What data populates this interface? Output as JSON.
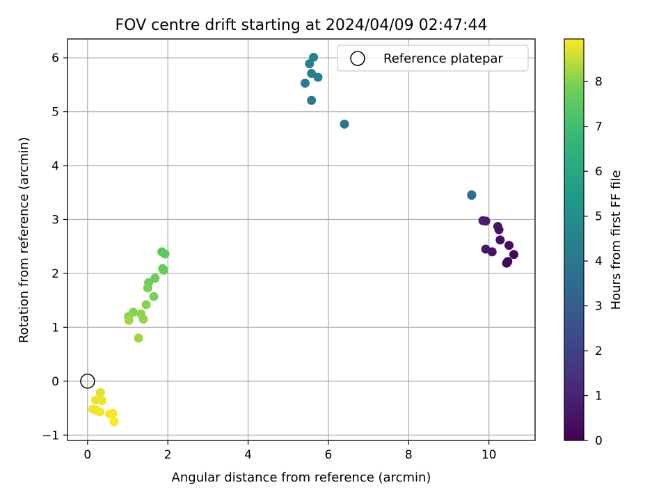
{
  "chart_data": {
    "type": "scatter",
    "title": "FOV centre drift starting at 2024/04/09 02:47:44",
    "xlabel": "Angular distance from reference (arcmin)",
    "ylabel": "Rotation from reference (arcmin)",
    "xlim": [
      -0.5,
      11.15
    ],
    "ylim": [
      -1.1,
      6.35
    ],
    "xticks": [
      0,
      2,
      4,
      6,
      8,
      10
    ],
    "yticks": [
      -1,
      0,
      1,
      2,
      3,
      4,
      5,
      6
    ],
    "grid": true,
    "legend": {
      "position": "top-right",
      "entries": [
        "Reference platepar"
      ]
    },
    "reference_point": {
      "x": 0,
      "y": 0
    },
    "colorbar": {
      "label": "Hours from first FF file",
      "colormap": "viridis",
      "range": [
        0,
        8.95
      ],
      "ticks": [
        0,
        1,
        2,
        3,
        4,
        5,
        6,
        7,
        8
      ]
    },
    "points": [
      {
        "x": 9.85,
        "y": 2.98,
        "hours": 0.9
      },
      {
        "x": 9.92,
        "y": 2.97,
        "hours": 0.8
      },
      {
        "x": 10.22,
        "y": 2.87,
        "hours": 0.6
      },
      {
        "x": 10.25,
        "y": 2.81,
        "hours": 0.5
      },
      {
        "x": 10.28,
        "y": 2.62,
        "hours": 0.4
      },
      {
        "x": 10.5,
        "y": 2.52,
        "hours": 0.3
      },
      {
        "x": 10.62,
        "y": 2.35,
        "hours": 0.2
      },
      {
        "x": 10.08,
        "y": 2.4,
        "hours": 0.5
      },
      {
        "x": 9.92,
        "y": 2.45,
        "hours": 0.6
      },
      {
        "x": 10.44,
        "y": 2.19,
        "hours": 0.1
      },
      {
        "x": 10.47,
        "y": 2.22,
        "hours": 0.1
      },
      {
        "x": 9.57,
        "y": 3.45,
        "hours": 3.3
      },
      {
        "x": 9.57,
        "y": 3.46,
        "hours": 3.6
      },
      {
        "x": 6.4,
        "y": 4.77,
        "hours": 3.9
      },
      {
        "x": 5.58,
        "y": 5.21,
        "hours": 4.1
      },
      {
        "x": 5.42,
        "y": 5.53,
        "hours": 4.2
      },
      {
        "x": 5.58,
        "y": 5.71,
        "hours": 4.3
      },
      {
        "x": 5.74,
        "y": 5.64,
        "hours": 4.3
      },
      {
        "x": 5.53,
        "y": 5.89,
        "hours": 4.4
      },
      {
        "x": 5.63,
        "y": 6.01,
        "hours": 4.5
      },
      {
        "x": 1.85,
        "y": 2.4,
        "hours": 7.5
      },
      {
        "x": 1.93,
        "y": 2.36,
        "hours": 7.6
      },
      {
        "x": 1.87,
        "y": 2.09,
        "hours": 7.7
      },
      {
        "x": 1.9,
        "y": 2.06,
        "hours": 7.7
      },
      {
        "x": 1.68,
        "y": 1.91,
        "hours": 7.8
      },
      {
        "x": 1.52,
        "y": 1.83,
        "hours": 7.8
      },
      {
        "x": 1.5,
        "y": 1.73,
        "hours": 7.9
      },
      {
        "x": 1.65,
        "y": 1.57,
        "hours": 7.9
      },
      {
        "x": 1.46,
        "y": 1.42,
        "hours": 8.0
      },
      {
        "x": 1.14,
        "y": 1.28,
        "hours": 8.0
      },
      {
        "x": 1.33,
        "y": 1.25,
        "hours": 8.1
      },
      {
        "x": 1.02,
        "y": 1.2,
        "hours": 8.1
      },
      {
        "x": 1.39,
        "y": 1.15,
        "hours": 8.1
      },
      {
        "x": 1.03,
        "y": 1.13,
        "hours": 8.2
      },
      {
        "x": 1.27,
        "y": 0.8,
        "hours": 8.2
      },
      {
        "x": 0.32,
        "y": -0.21,
        "hours": 8.7
      },
      {
        "x": 0.2,
        "y": -0.35,
        "hours": 8.8
      },
      {
        "x": 0.36,
        "y": -0.36,
        "hours": 8.8
      },
      {
        "x": 0.13,
        "y": -0.52,
        "hours": 8.85
      },
      {
        "x": 0.22,
        "y": -0.54,
        "hours": 8.85
      },
      {
        "x": 0.31,
        "y": -0.57,
        "hours": 8.9
      },
      {
        "x": 0.55,
        "y": -0.61,
        "hours": 8.9
      },
      {
        "x": 0.63,
        "y": -0.6,
        "hours": 8.9
      },
      {
        "x": 0.66,
        "y": -0.75,
        "hours": 8.95
      }
    ]
  }
}
